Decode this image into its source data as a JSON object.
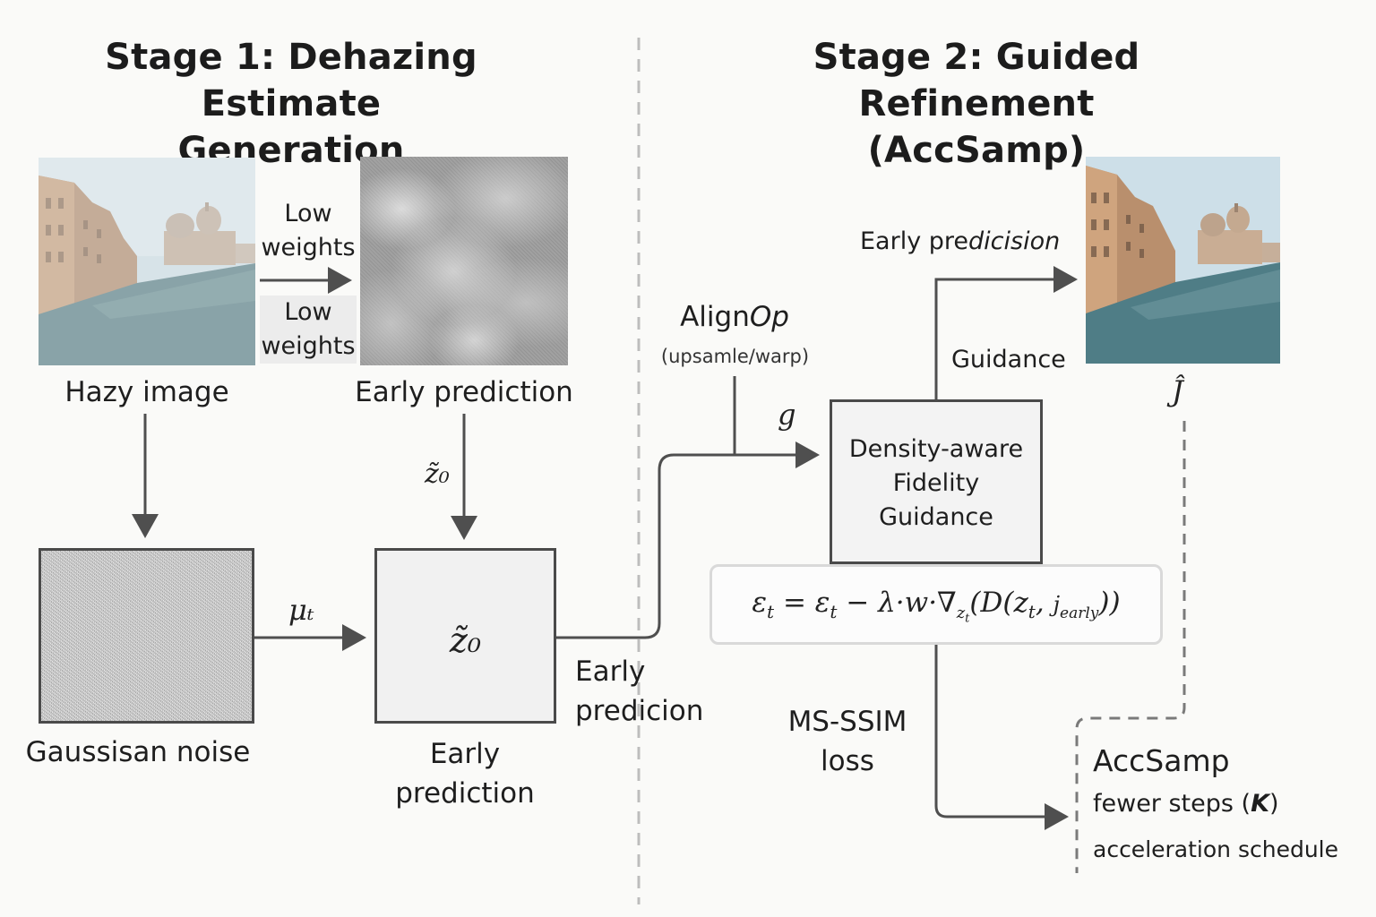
{
  "stage1": {
    "title_line1": "Stage 1: Dehazing Estimate",
    "title_line2": "Generation"
  },
  "stage2": {
    "title_line1": "Stage 2: Guided Refinement",
    "title_line2": "(AccSamp)"
  },
  "labels": {
    "low_weights_top_1": "Low",
    "low_weights_top_2": "weights",
    "low_weights_bottom_1": "Low",
    "low_weights_bottom_2": "weights",
    "hazy_image": "Hazy image",
    "early_prediction_top": "Early prediction",
    "z0_arrow": "z̃₀",
    "gaussian_noise": "Gaussisan noise",
    "mu_t": "μₜ",
    "z0_box": "z̃₀",
    "early_prediction_bottom_1": "Early",
    "early_prediction_bottom_2": "prediction",
    "early_predicion_1": "Early",
    "early_predicion_2": "predicion",
    "align_op_prefix": "Align",
    "align_op_italic": "Op",
    "align_op_sub": "(upsamle/warp)",
    "g": "g",
    "dfg_line1": "Density-aware",
    "dfg_line2": "Fidelity",
    "dfg_line3": "Guidance",
    "guidance": "Guidance",
    "early_predicision_prefix": "Early pre",
    "early_predicision_italic": "dicision",
    "j_hat": "Ĵ",
    "ms_ssim_1": "MS-SSIM",
    "ms_ssim_2": "loss",
    "accsamp": "AccSamp",
    "fewer_steps_prefix": "fewer steps (",
    "fewer_steps_k": "K",
    "fewer_steps_suffix": ")",
    "accel_schedule": "acceleration schedule"
  },
  "equation": {
    "eps1": "ε",
    "sub_t1": "t",
    "eq": " = ",
    "eps2": "ε",
    "sub_t2": "t",
    "minus": " − λ·w·∇",
    "grad_sub": "z",
    "grad_sub_t": "t",
    "paren": "(D(z",
    "sub_t3": "t",
    "comma": ", ",
    "jearly": "j",
    "jearly_sub": "early",
    "close": "))"
  },
  "colors": {
    "line": "#4f4f4f",
    "dashed": "#7a7a7a",
    "divider": "#bdbdbd"
  }
}
